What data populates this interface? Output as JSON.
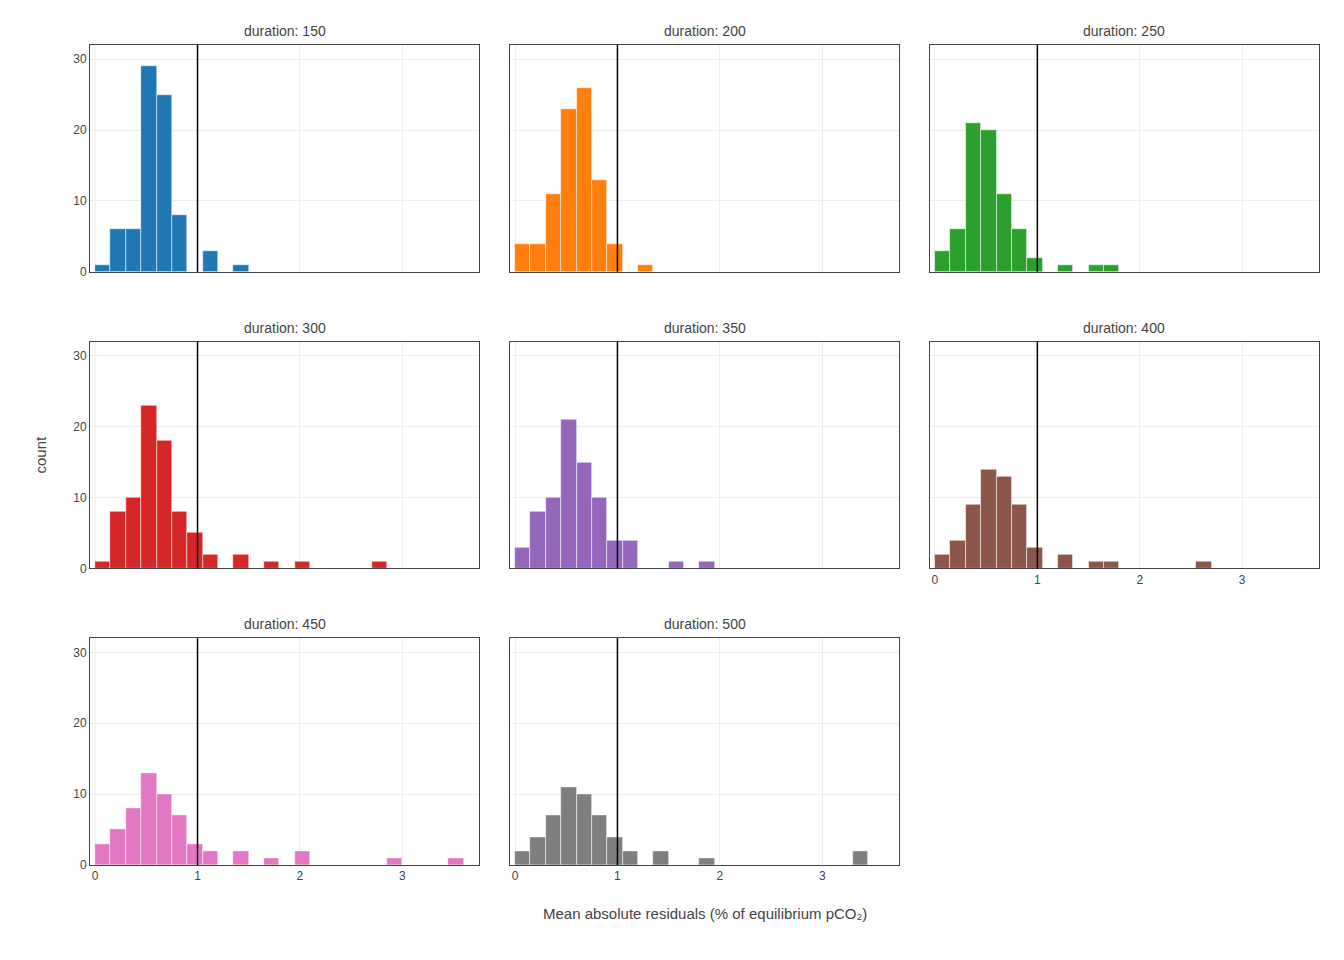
{
  "chart_data": [
    {
      "type": "histogram",
      "title": "duration: 150",
      "bins": [
        0,
        0.15,
        0.3,
        0.45,
        0.6,
        0.75,
        0.9,
        1.05,
        1.2,
        1.35,
        1.5,
        1.65,
        1.8,
        1.95,
        2.1,
        2.25,
        2.4,
        2.55,
        2.7,
        2.85,
        3.0,
        3.15,
        3.3,
        3.45,
        3.6,
        3.75
      ],
      "values": [
        1,
        6,
        6,
        29,
        25,
        8,
        0,
        3,
        0,
        1,
        0,
        0,
        0,
        0,
        0,
        0,
        0,
        0,
        0,
        0,
        0,
        0,
        0,
        0,
        0
      ],
      "threshold": 1.0,
      "xlim": [
        -0.05,
        3.75
      ],
      "ylim": [
        0,
        32
      ],
      "xticks": [
        0,
        1,
        2,
        3
      ],
      "yticks": [
        0,
        10,
        20,
        30
      ],
      "grid": true,
      "tick_labels": "y"
    },
    {
      "type": "histogram",
      "title": "duration: 200",
      "bins": [
        0,
        0.15,
        0.3,
        0.45,
        0.6,
        0.75,
        0.9,
        1.05,
        1.2,
        1.35,
        1.5,
        1.65,
        1.8,
        1.95,
        2.1,
        2.25,
        2.4,
        2.55,
        2.7,
        2.85,
        3.0,
        3.15,
        3.3,
        3.45,
        3.6,
        3.75
      ],
      "values": [
        4,
        4,
        11,
        23,
        26,
        13,
        4,
        0,
        1,
        0,
        0,
        0,
        0,
        0,
        0,
        0,
        0,
        0,
        0,
        0,
        0,
        0,
        0,
        0,
        0
      ],
      "threshold": 1.0,
      "xlim": [
        -0.05,
        3.75
      ],
      "ylim": [
        0,
        32
      ],
      "xticks": [
        0,
        1,
        2,
        3
      ],
      "yticks": [
        0,
        10,
        20,
        30
      ],
      "grid": true,
      "tick_labels": false
    },
    {
      "type": "histogram",
      "title": "duration: 250",
      "bins": [
        0,
        0.15,
        0.3,
        0.45,
        0.6,
        0.75,
        0.9,
        1.05,
        1.2,
        1.35,
        1.5,
        1.65,
        1.8,
        1.95,
        2.1,
        2.25,
        2.4,
        2.55,
        2.7,
        2.85,
        3.0,
        3.15,
        3.3,
        3.45,
        3.6,
        3.75
      ],
      "values": [
        3,
        6,
        21,
        20,
        11,
        6,
        2,
        0,
        1,
        0,
        1,
        1,
        0,
        0,
        0,
        0,
        0,
        0,
        0,
        0,
        0,
        0,
        0,
        0,
        0
      ],
      "threshold": 1.0,
      "xlim": [
        -0.05,
        3.75
      ],
      "ylim": [
        0,
        32
      ],
      "xticks": [
        0,
        1,
        2,
        3
      ],
      "yticks": [
        0,
        10,
        20,
        30
      ],
      "grid": true,
      "tick_labels": false
    },
    {
      "type": "histogram",
      "title": "duration: 300",
      "ylabel": "count",
      "bins": [
        0,
        0.15,
        0.3,
        0.45,
        0.6,
        0.75,
        0.9,
        1.05,
        1.2,
        1.35,
        1.5,
        1.65,
        1.8,
        1.95,
        2.1,
        2.25,
        2.4,
        2.55,
        2.7,
        2.85,
        3.0,
        3.15,
        3.3,
        3.45,
        3.6,
        3.75
      ],
      "values": [
        1,
        8,
        10,
        23,
        18,
        8,
        5,
        2,
        0,
        2,
        0,
        1,
        0,
        1,
        0,
        0,
        0,
        0,
        1,
        0,
        0,
        0,
        0,
        0,
        0
      ],
      "threshold": 1.0,
      "xlim": [
        -0.05,
        3.75
      ],
      "ylim": [
        0,
        32
      ],
      "xticks": [
        0,
        1,
        2,
        3
      ],
      "yticks": [
        0,
        10,
        20,
        30
      ],
      "grid": true,
      "tick_labels": "y"
    },
    {
      "type": "histogram",
      "title": "duration: 350",
      "bins": [
        0,
        0.15,
        0.3,
        0.45,
        0.6,
        0.75,
        0.9,
        1.05,
        1.2,
        1.35,
        1.5,
        1.65,
        1.8,
        1.95,
        2.1,
        2.25,
        2.4,
        2.55,
        2.7,
        2.85,
        3.0,
        3.15,
        3.3,
        3.45,
        3.6,
        3.75
      ],
      "values": [
        3,
        8,
        10,
        21,
        15,
        10,
        4,
        4,
        0,
        0,
        1,
        0,
        1,
        0,
        0,
        0,
        0,
        0,
        0,
        0,
        0,
        0,
        0,
        0,
        0
      ],
      "threshold": 1.0,
      "xlim": [
        -0.05,
        3.75
      ],
      "ylim": [
        0,
        32
      ],
      "xticks": [
        0,
        1,
        2,
        3
      ],
      "yticks": [
        0,
        10,
        20,
        30
      ],
      "grid": true,
      "tick_labels": false
    },
    {
      "type": "histogram",
      "title": "duration: 400",
      "bins": [
        0,
        0.15,
        0.3,
        0.45,
        0.6,
        0.75,
        0.9,
        1.05,
        1.2,
        1.35,
        1.5,
        1.65,
        1.8,
        1.95,
        2.1,
        2.25,
        2.4,
        2.55,
        2.7,
        2.85,
        3.0,
        3.15,
        3.3,
        3.45,
        3.6,
        3.75
      ],
      "values": [
        2,
        4,
        9,
        14,
        13,
        9,
        3,
        0,
        2,
        0,
        1,
        1,
        0,
        0,
        0,
        0,
        0,
        1,
        0,
        0,
        0,
        0,
        0,
        0,
        0
      ],
      "threshold": 1.0,
      "xlim": [
        -0.05,
        3.75
      ],
      "ylim": [
        0,
        32
      ],
      "xticks": [
        0,
        1,
        2,
        3
      ],
      "yticks": [
        0,
        10,
        20,
        30
      ],
      "grid": true,
      "tick_labels": "x"
    },
    {
      "type": "histogram",
      "title": "duration: 450",
      "bins": [
        0,
        0.15,
        0.3,
        0.45,
        0.6,
        0.75,
        0.9,
        1.05,
        1.2,
        1.35,
        1.5,
        1.65,
        1.8,
        1.95,
        2.1,
        2.25,
        2.4,
        2.55,
        2.7,
        2.85,
        3.0,
        3.15,
        3.3,
        3.45,
        3.6,
        3.75
      ],
      "values": [
        3,
        5,
        8,
        13,
        10,
        7,
        3,
        2,
        0,
        2,
        0,
        1,
        0,
        2,
        0,
        0,
        0,
        0,
        0,
        1,
        0,
        0,
        0,
        1,
        0
      ],
      "threshold": 1.0,
      "xlim": [
        -0.05,
        3.75
      ],
      "ylim": [
        0,
        32
      ],
      "xticks": [
        0,
        1,
        2,
        3
      ],
      "yticks": [
        0,
        10,
        20,
        30
      ],
      "grid": true
    },
    {
      "type": "histogram",
      "title": "duration: 500",
      "xlabel": "Mean absolute residuals (% of equilibrium pCO₂)",
      "bins": [
        0,
        0.15,
        0.3,
        0.45,
        0.6,
        0.75,
        0.9,
        1.05,
        1.2,
        1.35,
        1.5,
        1.65,
        1.8,
        1.95,
        2.1,
        2.25,
        2.4,
        2.55,
        2.7,
        2.85,
        3.0,
        3.15,
        3.3,
        3.45,
        3.6,
        3.75
      ],
      "values": [
        2,
        4,
        7,
        11,
        10,
        7,
        4,
        2,
        0,
        2,
        0,
        0,
        1,
        0,
        0,
        0,
        0,
        0,
        0,
        0,
        0,
        0,
        2,
        0,
        0
      ],
      "threshold": 1.0,
      "xlim": [
        -0.05,
        3.75
      ],
      "ylim": [
        0,
        32
      ],
      "xticks": [
        0,
        1,
        2,
        3
      ],
      "yticks": [
        0,
        10,
        20,
        30
      ],
      "grid": true,
      "tick_labels": "x"
    }
  ]
}
